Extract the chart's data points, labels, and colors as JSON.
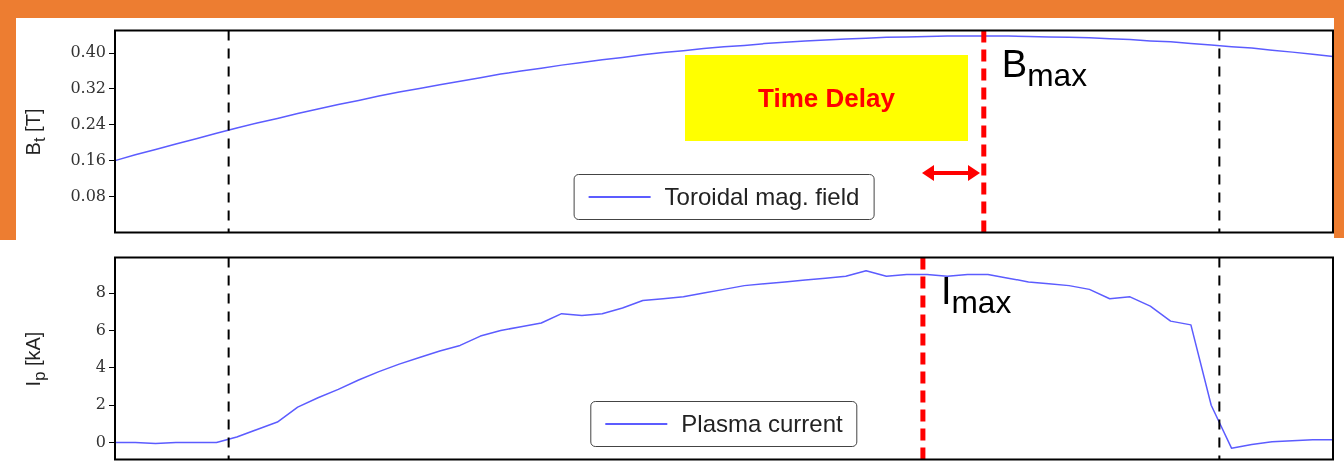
{
  "chart_data": [
    {
      "type": "line",
      "ylabel": "B$_{t}$ [T]",
      "categories": [
        null,
        null,
        null,
        null,
        null,
        null,
        null,
        null,
        null,
        null,
        null,
        null,
        null,
        null,
        null,
        null,
        null,
        null,
        null,
        null,
        null,
        null,
        null,
        null,
        null,
        null,
        null,
        null,
        null,
        null,
        null,
        null,
        null,
        null,
        null,
        null,
        null,
        null,
        null,
        null,
        null,
        null,
        null,
        null,
        null,
        null,
        null,
        null,
        null,
        null,
        null,
        null,
        null,
        null,
        null,
        null,
        null,
        null,
        null,
        null,
        null
      ],
      "series": [
        {
          "name": "Toroidal mag. field",
          "color": "#5c5cff",
          "values": [
            0.16,
            0.173,
            0.185,
            0.197,
            0.209,
            0.221,
            0.233,
            0.244,
            0.254,
            0.265,
            0.275,
            0.285,
            0.294,
            0.304,
            0.313,
            0.321,
            0.329,
            0.337,
            0.345,
            0.353,
            0.36,
            0.366,
            0.373,
            0.379,
            0.385,
            0.39,
            0.396,
            0.401,
            0.405,
            0.41,
            0.414,
            0.417,
            0.421,
            0.424,
            0.427,
            0.429,
            0.431,
            0.433,
            0.435,
            0.436,
            0.437,
            0.438,
            0.438,
            0.438,
            0.438,
            0.437,
            0.436,
            0.435,
            0.434,
            0.432,
            0.43,
            0.427,
            0.425,
            0.421,
            0.418,
            0.414,
            0.411,
            0.406,
            0.402,
            0.397,
            0.392
          ]
        }
      ],
      "ylim": [
        0,
        0.45
      ],
      "yticks": [
        {
          "value": 0.08,
          "label": "0.08"
        },
        {
          "value": 0.16,
          "label": "0.16"
        },
        {
          "value": 0.24,
          "label": "0.24"
        },
        {
          "value": 0.32,
          "label": "0.32"
        },
        {
          "value": 0.4,
          "label": "0.40"
        }
      ],
      "tick_labels": "y",
      "legend": "bottom",
      "marker": "none",
      "line_style": "solid",
      "annotations": [
        "Time Delay",
        "B$_{max}$"
      ]
    },
    {
      "type": "line",
      "ylabel": "I$_{p}$ [kA]",
      "categories": [
        null,
        null,
        null,
        null,
        null,
        null,
        null,
        null,
        null,
        null,
        null,
        null,
        null,
        null,
        null,
        null,
        null,
        null,
        null,
        null,
        null,
        null,
        null,
        null,
        null,
        null,
        null,
        null,
        null,
        null,
        null,
        null,
        null,
        null,
        null,
        null,
        null,
        null,
        null,
        null,
        null,
        null,
        null,
        null,
        null,
        null,
        null,
        null,
        null,
        null,
        null,
        null,
        null,
        null,
        null,
        null,
        null,
        null,
        null,
        null,
        null
      ],
      "series": [
        {
          "name": "Plasma current",
          "color": "#5c5cff",
          "values": [
            0,
            0,
            -0.05,
            0,
            0,
            0,
            0.3,
            0.7,
            1.1,
            1.9,
            2.4,
            2.85,
            3.35,
            3.8,
            4.2,
            4.55,
            4.9,
            5.2,
            5.7,
            6.0,
            6.2,
            6.4,
            6.9,
            6.8,
            6.9,
            7.2,
            7.6,
            7.7,
            7.8,
            8.0,
            8.2,
            8.4,
            8.5,
            8.6,
            8.7,
            8.8,
            8.9,
            9.2,
            8.9,
            9.0,
            9.0,
            8.9,
            9.0,
            9.0,
            8.8,
            8.6,
            8.5,
            8.4,
            8.2,
            7.7,
            7.8,
            7.3,
            6.5,
            6.3,
            2.0,
            -0.3,
            -0.1,
            0.05,
            0.1,
            0.15,
            0.15
          ]
        }
      ],
      "ylim": [
        -0.9,
        9.9
      ],
      "yticks": [
        0,
        2,
        4,
        6,
        8
      ],
      "tick_labels": "y",
      "legend": "bottom",
      "marker": "none",
      "line_style": "solid",
      "annotations": [
        "I$_{max}$"
      ]
    }
  ]
}
